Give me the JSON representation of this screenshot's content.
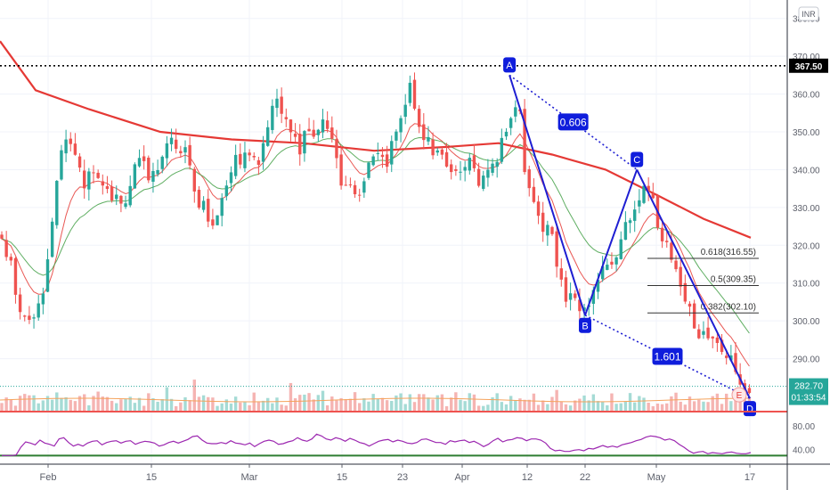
{
  "chart_data": {
    "type": "candlestick",
    "currency_badge": "INR",
    "price_axis": {
      "ticks": [
        "380.00",
        "370.00",
        "360.00",
        "350.00",
        "340.00",
        "330.00",
        "320.00",
        "310.00",
        "300.00",
        "290.00"
      ],
      "tick_values": [
        380,
        370,
        360,
        350,
        340,
        330,
        320,
        310,
        300,
        290
      ],
      "range": [
        276,
        383
      ]
    },
    "time_axis": {
      "labels": [
        "Feb",
        "15",
        "Mar",
        "15",
        "23",
        "Apr",
        "12",
        "22",
        "May",
        "17"
      ],
      "dates": [
        "2021-02-01",
        "2021-02-15",
        "2021-03-01",
        "2021-03-15",
        "2021-03-23",
        "2021-04-01",
        "2021-04-12",
        "2021-04-22",
        "2021-05-03",
        "2021-05-17"
      ]
    },
    "last_price": {
      "value": "282.70",
      "countdown": "01:33:54"
    },
    "reference_level": {
      "value": 367.5,
      "label": "367.50"
    },
    "pattern": {
      "points": [
        {
          "label": "A",
          "date": "2021-04-09",
          "price": 365.0
        },
        {
          "label": "B",
          "date": "2021-04-22",
          "price": 301.5
        },
        {
          "label": "C",
          "date": "2021-04-30",
          "price": 340.0
        },
        {
          "label": "D",
          "date": "2021-05-17",
          "price": 279.5
        }
      ],
      "ratios": [
        {
          "label": "0.606",
          "between": [
            "A",
            "C"
          ]
        },
        {
          "label": "1.601",
          "between": [
            "B",
            "D"
          ]
        }
      ],
      "extra_marker": "E"
    },
    "fibonacci": [
      {
        "label": "0.618(316.55)",
        "value": 316.55
      },
      {
        "label": "0.5(309.35)",
        "value": 309.35
      },
      {
        "label": "0.382(302.10)",
        "value": 302.1
      }
    ],
    "moving_averages": [
      {
        "color": "#e53935",
        "key": "ma-fast"
      },
      {
        "color": "#43a047",
        "key": "ma-mid"
      },
      {
        "color": "#e53935",
        "key": "ma-200"
      }
    ],
    "oscillator": {
      "ticks": [
        "80.00",
        "40.00"
      ],
      "tick_values": [
        80,
        40
      ],
      "upper_band": 80,
      "lower_band": 30,
      "line_color": "#9c27b0",
      "values": [
        30,
        30,
        30,
        31,
        44,
        53,
        51,
        48,
        56,
        51,
        49,
        46,
        58,
        60,
        52,
        46,
        49,
        46,
        51,
        54,
        55,
        48,
        52,
        54,
        55,
        51,
        54,
        55,
        49,
        52,
        54,
        53,
        51,
        46,
        48,
        52,
        54,
        51,
        54,
        57,
        62,
        63,
        56,
        51,
        50,
        50,
        52,
        50,
        55,
        51,
        50,
        48,
        51,
        45,
        50,
        54,
        56,
        54,
        49,
        50,
        53,
        55,
        60,
        56,
        54,
        58,
        66,
        63,
        58,
        56,
        60,
        58,
        54,
        59,
        56,
        52,
        50,
        46,
        50,
        54,
        56,
        57,
        53,
        56,
        54,
        51,
        50,
        52,
        57,
        58,
        55,
        52,
        52,
        49,
        55,
        53,
        55,
        56,
        52,
        54,
        50,
        45,
        49,
        55,
        59,
        53,
        56,
        57,
        60,
        59,
        55,
        58,
        58,
        56,
        51,
        42,
        38,
        39,
        37,
        37,
        39,
        40,
        38,
        42,
        41,
        44,
        47,
        44,
        46,
        44,
        48,
        50,
        52,
        55,
        57,
        61,
        63,
        62,
        60,
        56,
        58,
        55,
        49,
        44,
        38,
        34,
        36,
        37,
        33,
        35,
        34,
        33,
        35,
        36,
        34,
        33,
        33,
        35
      ]
    },
    "colors": {
      "up": "#26a69a",
      "down": "#ef5350",
      "pattern": "#1e1ed2",
      "label_box": "#0f1ddc"
    }
  }
}
